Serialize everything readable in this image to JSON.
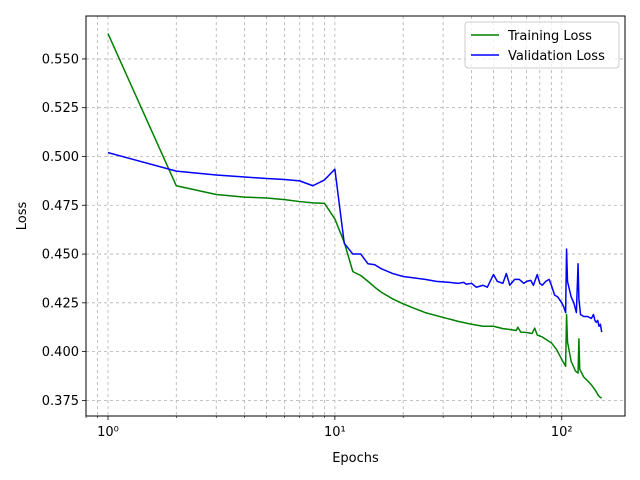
{
  "chart_data": {
    "type": "line",
    "xlabel": "Epochs",
    "ylabel": "Loss",
    "xscale": "log",
    "xlim": [
      0.8,
      190
    ],
    "ylim": [
      0.367,
      0.572
    ],
    "grid": true,
    "grid_style": "dashed",
    "legend_position": "top-right",
    "x_ticks": [
      {
        "value": 1,
        "label": "10⁰"
      },
      {
        "value": 10,
        "label": "10¹"
      },
      {
        "value": 100,
        "label": "10²"
      }
    ],
    "y_ticks": [
      {
        "value": 0.375,
        "label": "0.375"
      },
      {
        "value": 0.4,
        "label": "0.400"
      },
      {
        "value": 0.425,
        "label": "0.425"
      },
      {
        "value": 0.45,
        "label": "0.450"
      },
      {
        "value": 0.475,
        "label": "0.475"
      },
      {
        "value": 0.5,
        "label": "0.500"
      },
      {
        "value": 0.525,
        "label": "0.525"
      },
      {
        "value": 0.55,
        "label": "0.550"
      }
    ],
    "series": [
      {
        "name": "Training Loss",
        "color": "#008000",
        "points": [
          [
            1,
            0.563
          ],
          [
            2,
            0.485
          ],
          [
            3,
            0.4805
          ],
          [
            4,
            0.4792
          ],
          [
            5,
            0.4787
          ],
          [
            6,
            0.4779
          ],
          [
            7,
            0.4769
          ],
          [
            8,
            0.4762
          ],
          [
            9,
            0.476
          ],
          [
            10,
            0.468
          ],
          [
            11,
            0.456
          ],
          [
            12,
            0.441
          ],
          [
            13,
            0.439
          ],
          [
            14,
            0.436
          ],
          [
            15,
            0.433
          ],
          [
            16,
            0.4305
          ],
          [
            18,
            0.427
          ],
          [
            20,
            0.4245
          ],
          [
            22,
            0.4225
          ],
          [
            25,
            0.42
          ],
          [
            30,
            0.4175
          ],
          [
            35,
            0.4155
          ],
          [
            40,
            0.414
          ],
          [
            45,
            0.413
          ],
          [
            50,
            0.413
          ],
          [
            55,
            0.4118
          ],
          [
            60,
            0.4112
          ],
          [
            63,
            0.4108
          ],
          [
            64,
            0.4125
          ],
          [
            66,
            0.41
          ],
          [
            70,
            0.4098
          ],
          [
            74,
            0.4093
          ],
          [
            76,
            0.412
          ],
          [
            78,
            0.4085
          ],
          [
            82,
            0.4075
          ],
          [
            90,
            0.4045
          ],
          [
            95,
            0.401
          ],
          [
            100,
            0.396
          ],
          [
            104,
            0.3925
          ],
          [
            105,
            0.419
          ],
          [
            106,
            0.405
          ],
          [
            110,
            0.395
          ],
          [
            115,
            0.39
          ],
          [
            118,
            0.389
          ],
          [
            119,
            0.4065
          ],
          [
            120,
            0.391
          ],
          [
            125,
            0.387
          ],
          [
            130,
            0.385
          ],
          [
            135,
            0.383
          ],
          [
            140,
            0.3805
          ],
          [
            145,
            0.3775
          ],
          [
            148,
            0.3765
          ],
          [
            150,
            0.3763
          ]
        ]
      },
      {
        "name": "Validation Loss",
        "color": "#0000ff",
        "points": [
          [
            1,
            0.502
          ],
          [
            2,
            0.4925
          ],
          [
            3,
            0.4905
          ],
          [
            4,
            0.4895
          ],
          [
            5,
            0.4887
          ],
          [
            6,
            0.4882
          ],
          [
            7,
            0.4875
          ],
          [
            8,
            0.485
          ],
          [
            9,
            0.488
          ],
          [
            10,
            0.4935
          ],
          [
            11,
            0.4555
          ],
          [
            12,
            0.45
          ],
          [
            13,
            0.45
          ],
          [
            14,
            0.445
          ],
          [
            15,
            0.4445
          ],
          [
            16,
            0.4425
          ],
          [
            18,
            0.44
          ],
          [
            20,
            0.4385
          ],
          [
            25,
            0.437
          ],
          [
            28,
            0.436
          ],
          [
            32,
            0.4355
          ],
          [
            35,
            0.435
          ],
          [
            37,
            0.4355
          ],
          [
            38,
            0.4345
          ],
          [
            40,
            0.435
          ],
          [
            42,
            0.433
          ],
          [
            45,
            0.434
          ],
          [
            47,
            0.433
          ],
          [
            50,
            0.4395
          ],
          [
            52,
            0.436
          ],
          [
            55,
            0.435
          ],
          [
            57,
            0.44
          ],
          [
            59,
            0.434
          ],
          [
            62,
            0.437
          ],
          [
            65,
            0.437
          ],
          [
            68,
            0.435
          ],
          [
            70,
            0.436
          ],
          [
            73,
            0.4365
          ],
          [
            75,
            0.434
          ],
          [
            78,
            0.4395
          ],
          [
            80,
            0.435
          ],
          [
            82,
            0.434
          ],
          [
            85,
            0.436
          ],
          [
            88,
            0.437
          ],
          [
            90,
            0.434
          ],
          [
            93,
            0.429
          ],
          [
            96,
            0.428
          ],
          [
            100,
            0.425
          ],
          [
            102,
            0.423
          ],
          [
            104,
            0.42
          ],
          [
            105,
            0.4525
          ],
          [
            106,
            0.436
          ],
          [
            108,
            0.432
          ],
          [
            110,
            0.428
          ],
          [
            113,
            0.425
          ],
          [
            116,
            0.42
          ],
          [
            118,
            0.445
          ],
          [
            119,
            0.427
          ],
          [
            121,
            0.419
          ],
          [
            125,
            0.418
          ],
          [
            130,
            0.418
          ],
          [
            135,
            0.417
          ],
          [
            138,
            0.419
          ],
          [
            140,
            0.416
          ],
          [
            142,
            0.415
          ],
          [
            144,
            0.416
          ],
          [
            146,
            0.413
          ],
          [
            148,
            0.414
          ],
          [
            150,
            0.41
          ]
        ]
      }
    ]
  }
}
